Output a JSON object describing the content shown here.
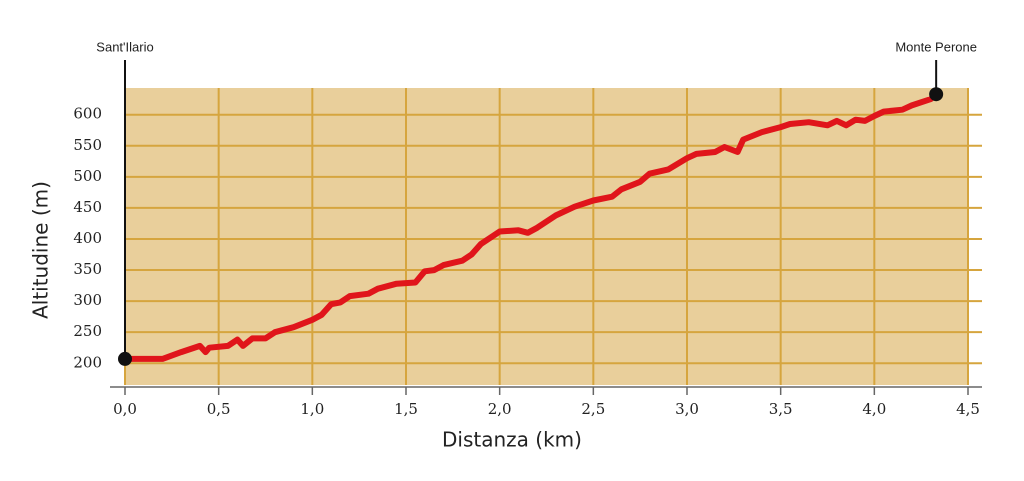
{
  "chart_data": {
    "type": "line",
    "xlabel": "Distanza (km)",
    "ylabel": "Altitudine (m)",
    "x": [
      0,
      0.2,
      0.3,
      0.4,
      0.43,
      0.45,
      0.55,
      0.6,
      0.63,
      0.68,
      0.75,
      0.8,
      0.9,
      1.0,
      1.05,
      1.1,
      1.15,
      1.2,
      1.3,
      1.35,
      1.45,
      1.55,
      1.6,
      1.65,
      1.7,
      1.8,
      1.85,
      1.9,
      2.0,
      2.1,
      2.15,
      2.2,
      2.3,
      2.4,
      2.5,
      2.6,
      2.65,
      2.75,
      2.8,
      2.9,
      3.0,
      3.05,
      3.15,
      3.2,
      3.27,
      3.3,
      3.4,
      3.5,
      3.55,
      3.65,
      3.75,
      3.8,
      3.85,
      3.9,
      3.95,
      4.0,
      4.05,
      4.15,
      4.2,
      4.3,
      4.33
    ],
    "series": [
      {
        "name": "Altitudine",
        "color": "#e0151b",
        "values": [
          207,
          207,
          218,
          228,
          218,
          225,
          228,
          238,
          228,
          240,
          240,
          250,
          258,
          270,
          278,
          295,
          298,
          308,
          312,
          320,
          328,
          330,
          348,
          350,
          358,
          365,
          375,
          392,
          412,
          414,
          410,
          418,
          438,
          452,
          462,
          468,
          480,
          492,
          505,
          512,
          530,
          537,
          540,
          548,
          540,
          560,
          572,
          580,
          585,
          588,
          583,
          590,
          583,
          592,
          590,
          598,
          605,
          608,
          615,
          625,
          633
        ]
      }
    ],
    "annotations": [
      {
        "label": "Sant'Ilario",
        "x": 0,
        "y": 207
      },
      {
        "label": "Monte Perone",
        "x": 4.33,
        "y": 633
      }
    ],
    "xlim": [
      0,
      4.5
    ],
    "xticks": [
      {
        "value": 0,
        "label": "0,0"
      },
      {
        "value": 0.5,
        "label": "0,5"
      },
      {
        "value": 1,
        "label": "1,0"
      },
      {
        "value": 1.5,
        "label": "1,5"
      },
      {
        "value": 2,
        "label": "2,0"
      },
      {
        "value": 2.5,
        "label": "2,5"
      },
      {
        "value": 3,
        "label": "3,0"
      },
      {
        "value": 3.5,
        "label": "3,5"
      },
      {
        "value": 4,
        "label": "4,0"
      },
      {
        "value": 4.5,
        "label": "4,5"
      }
    ],
    "ylim": [
      165,
      643
    ],
    "yticks": [
      200,
      250,
      300,
      350,
      400,
      450,
      500,
      550,
      600
    ],
    "grid": true,
    "background": "#e9cf9b",
    "grid_color": "#d6a53e"
  }
}
